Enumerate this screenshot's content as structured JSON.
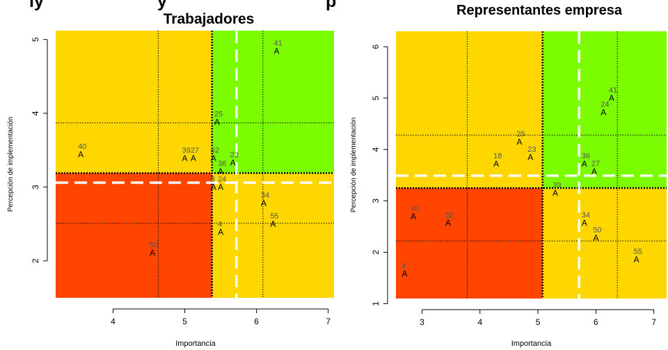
{
  "banner": {
    "left_text": "ly",
    "middle_text": "y",
    "right_text": "p"
  },
  "chart_data": [
    {
      "type": "scatter",
      "title": "Trabajadores",
      "xlabel": "Importancia",
      "ylabel": "Percepción de implementación",
      "xlim": [
        3.2,
        7.1
      ],
      "ylim": [
        1.5,
        5.12
      ],
      "xticks": [
        4,
        5,
        6,
        7
      ],
      "yticks": [
        2,
        3,
        4,
        5
      ],
      "grid": false,
      "quadrant_split": {
        "x": 5.38,
        "y": 3.19
      },
      "mean_lines": {
        "x": 5.72,
        "y": 3.06
      },
      "dotted_lines": {
        "x": [
          4.63,
          6.09
        ],
        "y": [
          2.51,
          3.87
        ]
      },
      "quadrant_colors": {
        "low_low": "#ff4500",
        "high_high": "#7cfc00",
        "mixed": "#ffd700"
      },
      "point_marker": "A",
      "points": [
        {
          "label": "41",
          "x": 6.28,
          "y": 4.84
        },
        {
          "label": "25",
          "x": 5.45,
          "y": 3.88
        },
        {
          "label": "40",
          "x": 3.55,
          "y": 3.44
        },
        {
          "label": "39",
          "x": 5.0,
          "y": 3.39
        },
        {
          "label": "27",
          "x": 5.12,
          "y": 3.39
        },
        {
          "label": "52",
          "x": 5.4,
          "y": 3.39
        },
        {
          "label": "23",
          "x": 5.67,
          "y": 3.33
        },
        {
          "label": "36",
          "x": 5.5,
          "y": 3.21
        },
        {
          "label": "8",
          "x": 5.4,
          "y": 3.0
        },
        {
          "label": "24",
          "x": 5.5,
          "y": 3.0
        },
        {
          "label": "34",
          "x": 6.1,
          "y": 2.78
        },
        {
          "label": "55",
          "x": 6.23,
          "y": 2.5
        },
        {
          "label": "4",
          "x": 5.5,
          "y": 2.39
        },
        {
          "label": "50",
          "x": 4.55,
          "y": 2.11
        }
      ]
    },
    {
      "type": "scatter",
      "title": "Representantes empresa",
      "xlabel": "Importancia",
      "ylabel": "Percepción de implementación",
      "xlim": [
        2.55,
        7.22
      ],
      "ylim": [
        1.1,
        6.3
      ],
      "xticks": [
        3,
        4,
        5,
        6,
        7
      ],
      "yticks": [
        1,
        2,
        3,
        4,
        5,
        6
      ],
      "grid": false,
      "quadrant_split": {
        "x": 5.08,
        "y": 3.25
      },
      "mean_lines": {
        "x": 5.71,
        "y": 3.49
      },
      "dotted_lines": {
        "x": [
          3.78,
          6.37
        ],
        "y": [
          2.22,
          4.28
        ]
      },
      "quadrant_colors": {
        "low_low": "#ff4500",
        "high_high": "#7cfc00",
        "mixed": "#ffd700"
      },
      "point_marker": "A",
      "points": [
        {
          "label": "41",
          "x": 6.27,
          "y": 5.0
        },
        {
          "label": "24",
          "x": 6.13,
          "y": 4.72
        },
        {
          "label": "25",
          "x": 4.68,
          "y": 4.15
        },
        {
          "label": "23",
          "x": 4.87,
          "y": 3.85
        },
        {
          "label": "18",
          "x": 4.28,
          "y": 3.72
        },
        {
          "label": "36",
          "x": 5.8,
          "y": 3.72
        },
        {
          "label": "27",
          "x": 5.97,
          "y": 3.57
        },
        {
          "label": "39",
          "x": 5.3,
          "y": 3.15
        },
        {
          "label": "40",
          "x": 2.85,
          "y": 2.7
        },
        {
          "label": "52",
          "x": 3.45,
          "y": 2.57
        },
        {
          "label": "34",
          "x": 5.8,
          "y": 2.57
        },
        {
          "label": "50",
          "x": 6.0,
          "y": 2.28
        },
        {
          "label": "55",
          "x": 6.7,
          "y": 1.86
        },
        {
          "label": "4",
          "x": 2.7,
          "y": 1.58
        }
      ]
    }
  ]
}
